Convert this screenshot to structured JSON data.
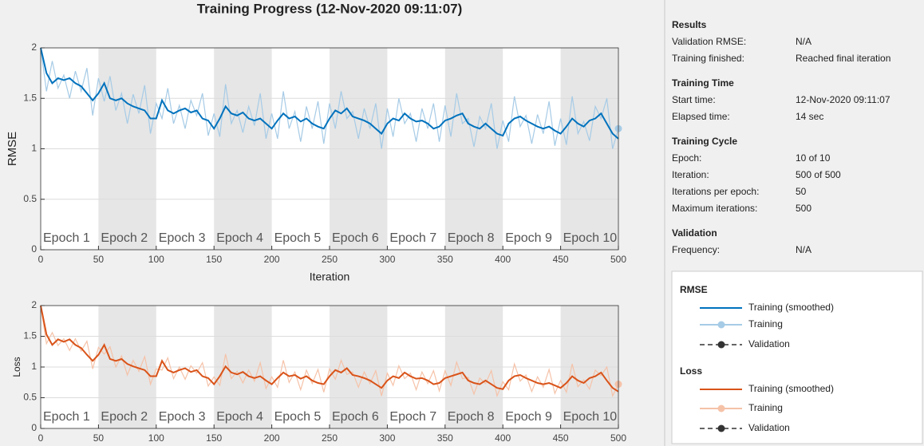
{
  "title": "Training Progress (12-Nov-2020 09:11:07)",
  "chart_data": [
    {
      "type": "line",
      "ylabel": "RMSE",
      "xlabel": "Iteration",
      "xlim": [
        0,
        500
      ],
      "ylim": [
        0,
        2
      ],
      "xticks": [
        0,
        50,
        100,
        150,
        200,
        250,
        300,
        350,
        400,
        450,
        500
      ],
      "yticks": [
        0,
        0.5,
        1,
        1.5,
        2
      ],
      "grid": true,
      "epochs": [
        {
          "label": "Epoch 1",
          "start": 0,
          "end": 50
        },
        {
          "label": "Epoch 2",
          "start": 50,
          "end": 100
        },
        {
          "label": "Epoch 3",
          "start": 100,
          "end": 150
        },
        {
          "label": "Epoch 4",
          "start": 150,
          "end": 200
        },
        {
          "label": "Epoch 5",
          "start": 200,
          "end": 250
        },
        {
          "label": "Epoch 6",
          "start": 250,
          "end": 300
        },
        {
          "label": "Epoch 7",
          "start": 300,
          "end": 350
        },
        {
          "label": "Epoch 8",
          "start": 350,
          "end": 400
        },
        {
          "label": "Epoch 9",
          "start": 400,
          "end": 450
        },
        {
          "label": "Epoch 10",
          "start": 450,
          "end": 500
        }
      ],
      "x": [
        0,
        5,
        10,
        15,
        20,
        25,
        30,
        35,
        40,
        45,
        50,
        55,
        60,
        65,
        70,
        75,
        80,
        85,
        90,
        95,
        100,
        105,
        110,
        115,
        120,
        125,
        130,
        135,
        140,
        145,
        150,
        155,
        160,
        165,
        170,
        175,
        180,
        185,
        190,
        195,
        200,
        205,
        210,
        215,
        220,
        225,
        230,
        235,
        240,
        245,
        250,
        255,
        260,
        265,
        270,
        275,
        280,
        285,
        290,
        295,
        300,
        305,
        310,
        315,
        320,
        325,
        330,
        335,
        340,
        345,
        350,
        355,
        360,
        365,
        370,
        375,
        380,
        385,
        390,
        395,
        400,
        405,
        410,
        415,
        420,
        425,
        430,
        435,
        440,
        445,
        450,
        455,
        460,
        465,
        470,
        475,
        480,
        485,
        490,
        495,
        500
      ],
      "legend_title": "RMSE",
      "validation_name": "Validation",
      "series": [
        {
          "name": "Training",
          "color": "#a6cbe6",
          "values": [
            2.0,
            1.57,
            1.87,
            1.6,
            1.73,
            1.5,
            1.77,
            1.57,
            1.8,
            1.33,
            1.7,
            1.47,
            1.72,
            1.38,
            1.55,
            1.25,
            1.54,
            1.35,
            1.63,
            1.15,
            1.45,
            1.3,
            1.6,
            1.25,
            1.43,
            1.2,
            1.48,
            1.33,
            1.55,
            1.13,
            1.35,
            1.12,
            1.64,
            1.25,
            1.38,
            1.16,
            1.42,
            1.23,
            1.55,
            1.1,
            1.35,
            1.1,
            1.57,
            1.2,
            1.37,
            1.07,
            1.42,
            1.2,
            1.47,
            1.05,
            1.45,
            1.2,
            1.57,
            1.3,
            1.37,
            1.1,
            1.4,
            1.2,
            1.45,
            1.0,
            1.4,
            1.12,
            1.5,
            1.25,
            1.35,
            1.07,
            1.4,
            1.2,
            1.45,
            1.07,
            1.43,
            1.12,
            1.55,
            1.25,
            1.3,
            1.02,
            1.32,
            1.2,
            1.45,
            1.0,
            1.28,
            1.07,
            1.52,
            1.22,
            1.33,
            1.05,
            1.34,
            1.15,
            1.47,
            1.03,
            1.3,
            1.04,
            1.52,
            1.15,
            1.27,
            1.08,
            1.42,
            1.3,
            1.5,
            1.0,
            1.2
          ]
        },
        {
          "name": "Training (smoothed)",
          "color": "#0072bd",
          "values": [
            2.0,
            1.75,
            1.65,
            1.7,
            1.68,
            1.7,
            1.65,
            1.62,
            1.55,
            1.48,
            1.55,
            1.65,
            1.5,
            1.48,
            1.5,
            1.45,
            1.42,
            1.4,
            1.38,
            1.3,
            1.3,
            1.48,
            1.38,
            1.35,
            1.38,
            1.4,
            1.36,
            1.38,
            1.3,
            1.28,
            1.2,
            1.3,
            1.42,
            1.35,
            1.33,
            1.36,
            1.3,
            1.28,
            1.3,
            1.25,
            1.2,
            1.28,
            1.35,
            1.3,
            1.32,
            1.27,
            1.3,
            1.25,
            1.22,
            1.2,
            1.3,
            1.38,
            1.35,
            1.4,
            1.32,
            1.3,
            1.28,
            1.25,
            1.2,
            1.15,
            1.25,
            1.3,
            1.28,
            1.35,
            1.3,
            1.27,
            1.28,
            1.25,
            1.2,
            1.22,
            1.28,
            1.3,
            1.33,
            1.35,
            1.25,
            1.22,
            1.2,
            1.25,
            1.2,
            1.15,
            1.13,
            1.25,
            1.3,
            1.32,
            1.28,
            1.25,
            1.22,
            1.2,
            1.22,
            1.18,
            1.15,
            1.22,
            1.3,
            1.25,
            1.22,
            1.28,
            1.3,
            1.35,
            1.25,
            1.15,
            1.1
          ]
        }
      ]
    },
    {
      "type": "line",
      "ylabel": "Loss",
      "xlim": [
        0,
        500
      ],
      "ylim": [
        0,
        2
      ],
      "xticks": [
        0,
        50,
        100,
        150,
        200,
        250,
        300,
        350,
        400,
        450,
        500
      ],
      "yticks": [
        0,
        0.5,
        1,
        1.5,
        2
      ],
      "grid": true,
      "epochs": [
        {
          "label": "Epoch 1",
          "start": 0,
          "end": 50
        },
        {
          "label": "Epoch 2",
          "start": 50,
          "end": 100
        },
        {
          "label": "Epoch 3",
          "start": 100,
          "end": 150
        },
        {
          "label": "Epoch 4",
          "start": 150,
          "end": 200
        },
        {
          "label": "Epoch 5",
          "start": 200,
          "end": 250
        },
        {
          "label": "Epoch 6",
          "start": 250,
          "end": 300
        },
        {
          "label": "Epoch 7",
          "start": 300,
          "end": 350
        },
        {
          "label": "Epoch 8",
          "start": 350,
          "end": 400
        },
        {
          "label": "Epoch 9",
          "start": 400,
          "end": 450
        },
        {
          "label": "Epoch 10",
          "start": 450,
          "end": 500
        }
      ],
      "x": [
        0,
        5,
        10,
        15,
        20,
        25,
        30,
        35,
        40,
        45,
        50,
        55,
        60,
        65,
        70,
        75,
        80,
        85,
        90,
        95,
        100,
        105,
        110,
        115,
        120,
        125,
        130,
        135,
        140,
        145,
        150,
        155,
        160,
        165,
        170,
        175,
        180,
        185,
        190,
        195,
        200,
        205,
        210,
        215,
        220,
        225,
        230,
        235,
        240,
        245,
        250,
        255,
        260,
        265,
        270,
        275,
        280,
        285,
        290,
        295,
        300,
        305,
        310,
        315,
        320,
        325,
        330,
        335,
        340,
        345,
        350,
        355,
        360,
        365,
        370,
        375,
        380,
        385,
        390,
        395,
        400,
        405,
        410,
        415,
        420,
        425,
        430,
        435,
        440,
        445,
        450,
        455,
        460,
        465,
        470,
        475,
        480,
        485,
        490,
        495,
        500
      ],
      "legend_title": "Loss",
      "validation_name": "Validation",
      "series": [
        {
          "name": "Training",
          "color": "#f5c2a8",
          "values": [
            2.0,
            1.38,
            1.56,
            1.35,
            1.46,
            1.27,
            1.46,
            1.26,
            1.42,
            0.97,
            1.32,
            1.21,
            1.33,
            1.0,
            1.18,
            0.87,
            1.11,
            0.93,
            1.17,
            0.72,
            0.97,
            0.95,
            1.15,
            0.81,
            1.0,
            0.8,
            1.02,
            0.9,
            1.07,
            0.69,
            0.84,
            0.7,
            1.21,
            0.81,
            0.93,
            0.74,
            0.95,
            0.77,
            1.07,
            0.65,
            0.84,
            0.67,
            1.11,
            0.75,
            0.92,
            0.63,
            0.95,
            0.73,
            0.96,
            0.59,
            0.97,
            0.8,
            1.11,
            0.88,
            0.92,
            0.67,
            0.92,
            0.73,
            0.94,
            0.53,
            0.9,
            0.7,
            1.02,
            0.81,
            0.9,
            0.63,
            0.92,
            0.73,
            0.94,
            0.61,
            0.94,
            0.7,
            1.08,
            0.81,
            0.83,
            0.56,
            0.82,
            0.73,
            0.94,
            0.53,
            0.76,
            0.63,
            1.05,
            0.77,
            0.87,
            0.6,
            0.84,
            0.67,
            0.96,
            0.57,
            0.78,
            0.59,
            1.05,
            0.68,
            0.79,
            0.64,
            0.95,
            0.86,
            1.0,
            0.53,
            0.72
          ]
        },
        {
          "name": "Training (smoothed)",
          "color": "#d95319",
          "values": [
            2.0,
            1.53,
            1.36,
            1.45,
            1.41,
            1.45,
            1.36,
            1.31,
            1.2,
            1.1,
            1.2,
            1.36,
            1.13,
            1.1,
            1.13,
            1.05,
            1.01,
            0.98,
            0.95,
            0.85,
            0.85,
            1.1,
            0.95,
            0.91,
            0.95,
            0.98,
            0.92,
            0.95,
            0.85,
            0.82,
            0.72,
            0.85,
            1.01,
            0.91,
            0.88,
            0.92,
            0.85,
            0.82,
            0.85,
            0.78,
            0.72,
            0.82,
            0.91,
            0.85,
            0.87,
            0.81,
            0.85,
            0.78,
            0.74,
            0.72,
            0.85,
            0.95,
            0.91,
            0.98,
            0.87,
            0.85,
            0.82,
            0.78,
            0.72,
            0.66,
            0.78,
            0.85,
            0.82,
            0.91,
            0.85,
            0.81,
            0.82,
            0.78,
            0.72,
            0.74,
            0.82,
            0.85,
            0.88,
            0.91,
            0.78,
            0.74,
            0.72,
            0.78,
            0.72,
            0.66,
            0.64,
            0.78,
            0.85,
            0.87,
            0.82,
            0.78,
            0.74,
            0.72,
            0.74,
            0.7,
            0.66,
            0.74,
            0.85,
            0.78,
            0.74,
            0.82,
            0.85,
            0.91,
            0.78,
            0.66,
            0.6
          ]
        }
      ]
    }
  ],
  "panel": {
    "sections": [
      {
        "title": "Results",
        "rows": [
          [
            "Validation RMSE:",
            "N/A"
          ],
          [
            "Training finished:",
            "Reached final iteration"
          ]
        ]
      },
      {
        "title": "Training Time",
        "rows": [
          [
            "Start time:",
            "12-Nov-2020 09:11:07"
          ],
          [
            "Elapsed time:",
            "14 sec"
          ]
        ]
      },
      {
        "title": "Training Cycle",
        "rows": [
          [
            "Epoch:",
            "10 of 10"
          ],
          [
            "Iteration:",
            "500 of 500"
          ],
          [
            "Iterations per epoch:",
            "50"
          ],
          [
            "Maximum iterations:",
            "500"
          ]
        ]
      },
      {
        "title": "Validation",
        "rows": [
          [
            "Frequency:",
            "N/A"
          ]
        ]
      }
    ]
  }
}
